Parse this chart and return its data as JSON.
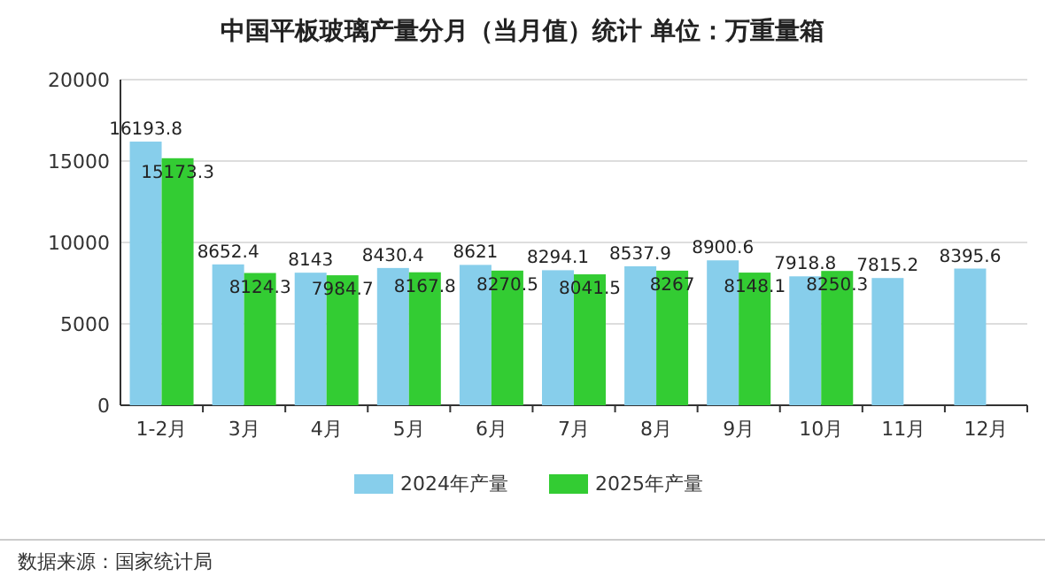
{
  "chart_data": {
    "type": "bar",
    "title": "中国平板玻璃产量分月（当月值）统计 单位：万重量箱",
    "categories": [
      "1-2月",
      "3月",
      "4月",
      "5月",
      "6月",
      "7月",
      "8月",
      "9月",
      "10月",
      "11月",
      "12月"
    ],
    "series": [
      {
        "name": "2024年产量",
        "color": "#87ceeb",
        "values": [
          16193.8,
          8652.4,
          8143,
          8430.4,
          8621,
          8294.1,
          8537.9,
          8900.6,
          7918.8,
          7815.2,
          8395.6
        ]
      },
      {
        "name": "2025年产量",
        "color": "#33cc33",
        "values": [
          15173.3,
          8124.3,
          7984.7,
          8167.8,
          8270.5,
          8041.5,
          8267,
          8148.1,
          8250.3,
          null,
          null
        ]
      }
    ],
    "ylim": [
      0,
      20000
    ],
    "yticks": [
      0,
      5000,
      10000,
      15000,
      20000
    ],
    "grid": "y",
    "legend": "bottom",
    "data_labels": true,
    "annotations": [
      "数据来源：国家统计局"
    ]
  }
}
